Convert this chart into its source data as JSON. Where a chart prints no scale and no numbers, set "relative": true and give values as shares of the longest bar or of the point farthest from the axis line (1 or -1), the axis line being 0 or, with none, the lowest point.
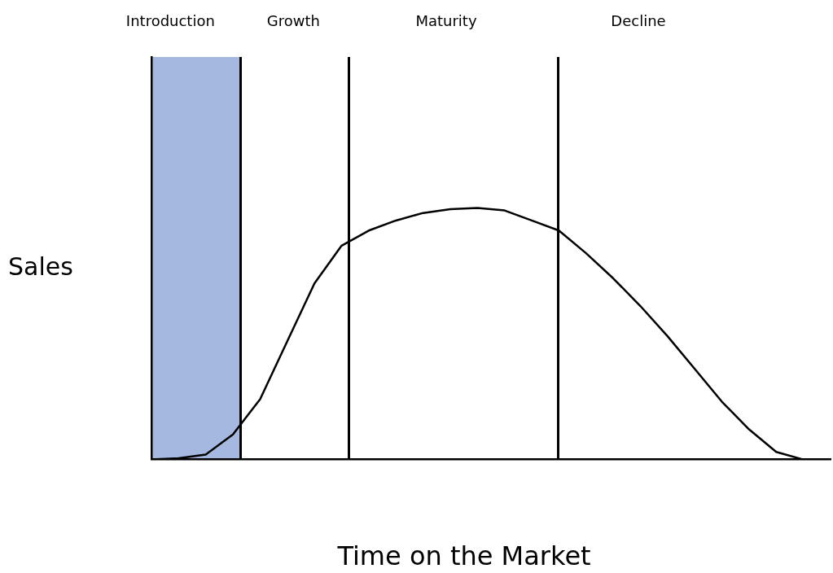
{
  "chart_data": {
    "type": "line",
    "xlabel": "Time on the Market",
    "ylabel": "Sales",
    "relative": true,
    "marker": "none",
    "line_style": "solid",
    "categories": [
      null,
      null,
      null,
      null,
      null,
      null,
      null,
      null,
      null,
      null,
      null,
      null,
      null,
      null,
      null,
      null,
      null,
      null,
      null,
      null,
      null,
      null,
      null,
      null,
      null,
      null
    ],
    "series": [
      {
        "color": "#000000",
        "values": [
          0,
          0.005,
          0.02,
          0.1,
          0.24,
          0.47,
          0.7,
          0.85,
          0.91,
          0.95,
          0.98,
          0.995,
          1,
          0.99,
          0.95,
          0.91,
          0.82,
          0.72,
          0.61,
          0.49,
          0.36,
          0.23,
          0.12,
          0.03,
          0,
          0
        ]
      }
    ],
    "annotations": [
      "Introduction",
      "Growth",
      "Maturity",
      "Decline"
    ]
  }
}
